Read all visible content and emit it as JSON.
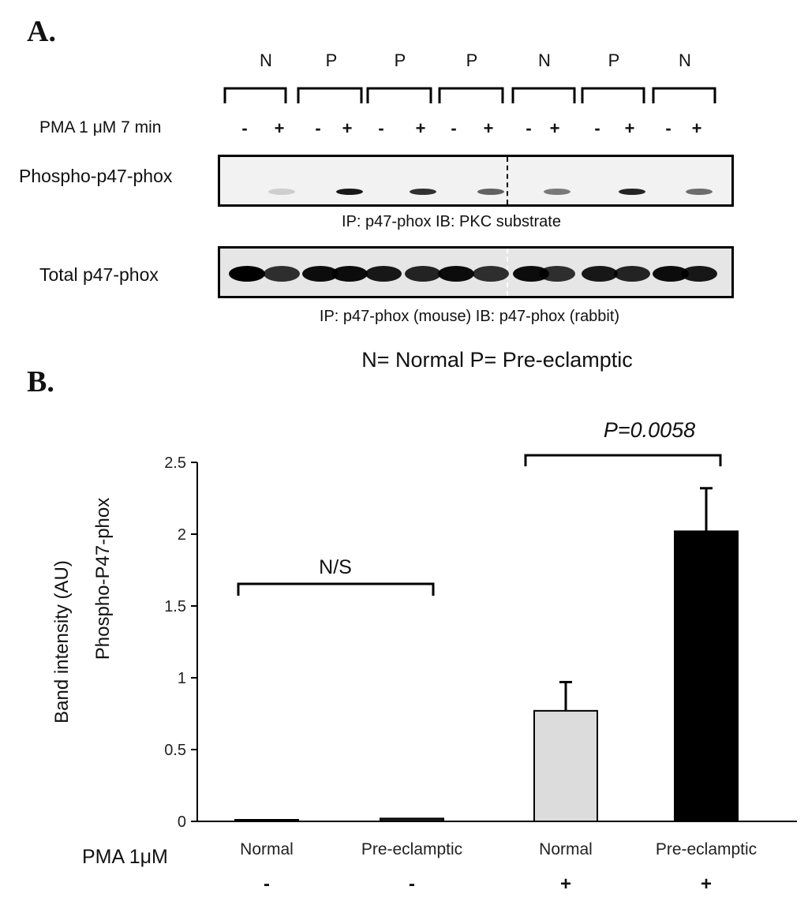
{
  "panel_a": {
    "letter": "A.",
    "group_labels": [
      "N",
      "P",
      "P",
      "P",
      "N",
      "P",
      "N"
    ],
    "treatment_label": "PMA 1 μM 7 min",
    "signs": [
      "-",
      "+",
      "-",
      "+",
      "-",
      "+",
      "-",
      "+",
      "-",
      "+",
      "-",
      "+",
      "-",
      "+"
    ],
    "blot1_label": "Phospho-p47-phox",
    "blot1_caption": "IP: p47-phox IB: PKC substrate",
    "blot2_label": "Total p47-phox",
    "blot2_caption": "IP: p47-phox (mouse) IB: p47-phox (rabbit)",
    "legend": "N= Normal P= Pre-eclamptic",
    "phospho_band_intensity": [
      0,
      0.15,
      0,
      0.9,
      0,
      0.8,
      0,
      0.6,
      0,
      0.5,
      0,
      0.85,
      0,
      0.55
    ],
    "total_band_intensity": [
      1,
      0.8,
      0.95,
      0.95,
      0.9,
      0.85,
      0.95,
      0.8,
      0.95,
      0.8,
      0.9,
      0.85,
      0.95,
      0.9
    ]
  },
  "panel_b": {
    "letter": "B."
  },
  "chart_data": {
    "type": "bar",
    "categories": [
      "Normal",
      "Pre-eclamptic",
      "Normal",
      "Pre-eclamptic"
    ],
    "pma_row_label": "PMA 1μM",
    "pma_signs": [
      "-",
      "-",
      "+",
      "+"
    ],
    "values": [
      0.01,
      0.02,
      0.77,
      2.02
    ],
    "errors": [
      0.0,
      0.0,
      0.2,
      0.3
    ],
    "bar_colors": [
      "#222222",
      "#222222",
      "#dcdcdc",
      "#000000"
    ],
    "ylabel_line1": "Band intensity (AU)",
    "ylabel_line2": "Phospho-P47-phox",
    "ylim": [
      0,
      2.5
    ],
    "yticks": [
      "0",
      "0.5",
      "1",
      "1.5",
      "2",
      "2.5"
    ],
    "annotations": {
      "ns": "N/S",
      "p_value": "P=0.0058"
    }
  }
}
